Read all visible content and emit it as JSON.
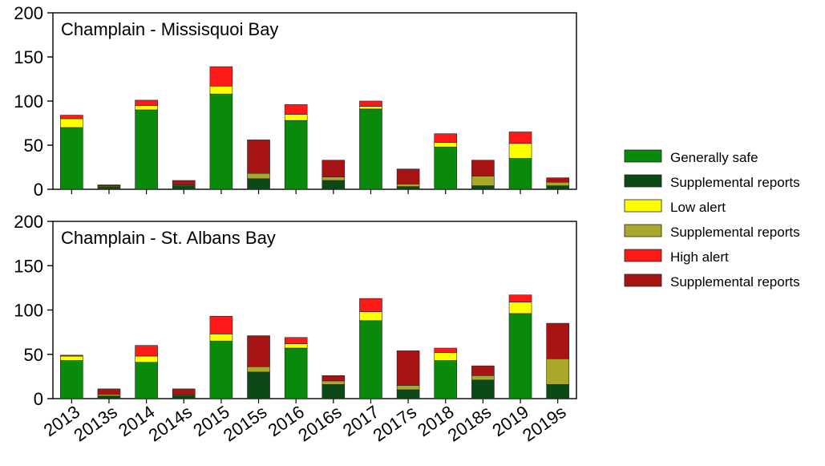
{
  "categories": [
    "2013",
    "2013s",
    "2014",
    "2014s",
    "2015",
    "2015s",
    "2016",
    "2016s",
    "2017",
    "2017s",
    "2018",
    "2018s",
    "2019",
    "2019s"
  ],
  "legend": [
    {
      "label": "Generally safe",
      "color": "#0a8a0a"
    },
    {
      "label": "Supplemental reports",
      "color": "#0b4a16"
    },
    {
      "label": "Low alert",
      "color": "#ffff00"
    },
    {
      "label": "Supplemental reports",
      "color": "#a8a82a"
    },
    {
      "label": "High alert",
      "color": "#ff1a1a"
    },
    {
      "label": "Supplemental reports",
      "color": "#a81414"
    }
  ],
  "chart_data": [
    {
      "type": "bar",
      "stacked": true,
      "title": "Champlain - Missisquoi Bay",
      "ylim": [
        0,
        200
      ],
      "yticks": [
        0,
        50,
        100,
        150,
        200
      ],
      "categories": [
        "2013",
        "2013s",
        "2014",
        "2014s",
        "2015",
        "2015s",
        "2016",
        "2016s",
        "2017",
        "2017s",
        "2018",
        "2018s",
        "2019",
        "2019s"
      ],
      "series": [
        {
          "name": "Generally safe",
          "values": [
            70,
            0,
            90,
            0,
            108,
            0,
            78,
            0,
            91,
            0,
            48,
            0,
            35,
            0
          ]
        },
        {
          "name": "Supplemental reports",
          "values": [
            0,
            3,
            0,
            4,
            0,
            12,
            0,
            10,
            0,
            3,
            0,
            4,
            0,
            4
          ]
        },
        {
          "name": "Low alert",
          "values": [
            10,
            0,
            5,
            0,
            9,
            0,
            7,
            0,
            3,
            0,
            5,
            0,
            17,
            0
          ]
        },
        {
          "name": "Supplemental reports",
          "values": [
            0,
            1,
            0,
            1,
            0,
            6,
            0,
            4,
            0,
            3,
            0,
            11,
            0,
            4
          ]
        },
        {
          "name": "High alert",
          "values": [
            4,
            0,
            6,
            0,
            22,
            0,
            11,
            0,
            6,
            0,
            10,
            0,
            13,
            0
          ]
        },
        {
          "name": "Supplemental reports",
          "values": [
            0,
            1,
            0,
            5,
            0,
            38,
            0,
            19,
            0,
            17,
            0,
            18,
            0,
            5
          ]
        }
      ]
    },
    {
      "type": "bar",
      "stacked": true,
      "title": "Champlain - St. Albans Bay",
      "ylim": [
        0,
        200
      ],
      "yticks": [
        0,
        50,
        100,
        150,
        200
      ],
      "categories": [
        "2013",
        "2013s",
        "2014",
        "2014s",
        "2015",
        "2015s",
        "2016",
        "2016s",
        "2017",
        "2017s",
        "2018",
        "2018s",
        "2019",
        "2019s"
      ],
      "series": [
        {
          "name": "Generally safe",
          "values": [
            43,
            0,
            41,
            0,
            65,
            0,
            57,
            0,
            88,
            0,
            43,
            0,
            96,
            0
          ]
        },
        {
          "name": "Supplemental reports",
          "values": [
            0,
            3,
            0,
            4,
            0,
            30,
            0,
            16,
            0,
            10,
            0,
            21,
            0,
            16
          ]
        },
        {
          "name": "Low alert",
          "values": [
            5,
            0,
            7,
            0,
            8,
            0,
            5,
            0,
            10,
            0,
            9,
            0,
            13,
            0
          ]
        },
        {
          "name": "Supplemental reports",
          "values": [
            0,
            2,
            0,
            1,
            0,
            6,
            0,
            4,
            0,
            5,
            0,
            5,
            0,
            29
          ]
        },
        {
          "name": "High alert",
          "values": [
            1,
            0,
            12,
            0,
            20,
            0,
            7,
            0,
            15,
            0,
            5,
            0,
            8,
            0
          ]
        },
        {
          "name": "Supplemental reports",
          "values": [
            0,
            6,
            0,
            6,
            0,
            35,
            0,
            6,
            0,
            39,
            0,
            11,
            0,
            40
          ]
        }
      ]
    }
  ]
}
